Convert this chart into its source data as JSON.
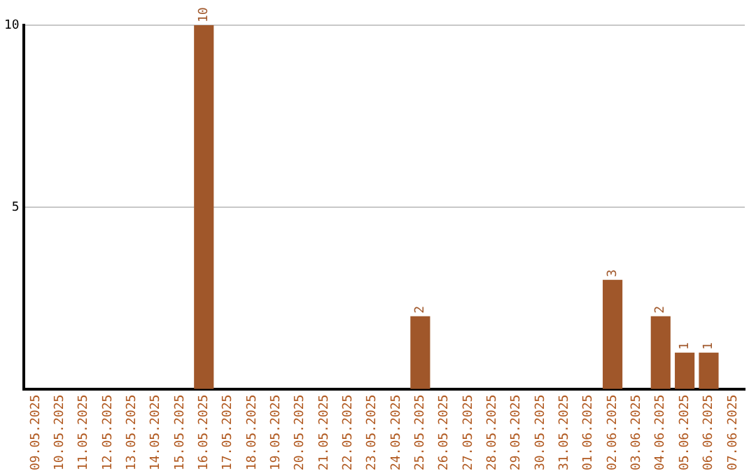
{
  "chart_data": {
    "type": "bar",
    "categories": [
      "09.05.2025",
      "10.05.2025",
      "11.05.2025",
      "12.05.2025",
      "13.05.2025",
      "14.05.2025",
      "15.05.2025",
      "16.05.2025",
      "17.05.2025",
      "18.05.2025",
      "19.05.2025",
      "20.05.2025",
      "21.05.2025",
      "22.05.2025",
      "23.05.2025",
      "24.05.2025",
      "25.05.2025",
      "26.05.2025",
      "27.05.2025",
      "28.05.2025",
      "29.05.2025",
      "30.05.2025",
      "31.05.2025",
      "01.06.2025",
      "02.06.2025",
      "03.06.2025",
      "04.06.2025",
      "05.06.2025",
      "06.06.2025",
      "07.06.2025"
    ],
    "values": [
      0,
      0,
      0,
      0,
      0,
      0,
      0,
      10,
      0,
      0,
      0,
      0,
      0,
      0,
      0,
      0,
      2,
      0,
      0,
      0,
      0,
      0,
      0,
      0,
      3,
      0,
      2,
      1,
      1,
      0
    ],
    "value_labels": [
      null,
      null,
      null,
      null,
      null,
      null,
      null,
      "10",
      null,
      null,
      null,
      null,
      null,
      null,
      null,
      null,
      "2",
      null,
      null,
      null,
      null,
      null,
      null,
      null,
      "3",
      null,
      "2",
      "1",
      "1",
      null
    ],
    "color": "#a0572a",
    "ylim": [
      0,
      10
    ],
    "yticks": [
      5,
      10
    ],
    "grid": "y",
    "legend": false
  }
}
